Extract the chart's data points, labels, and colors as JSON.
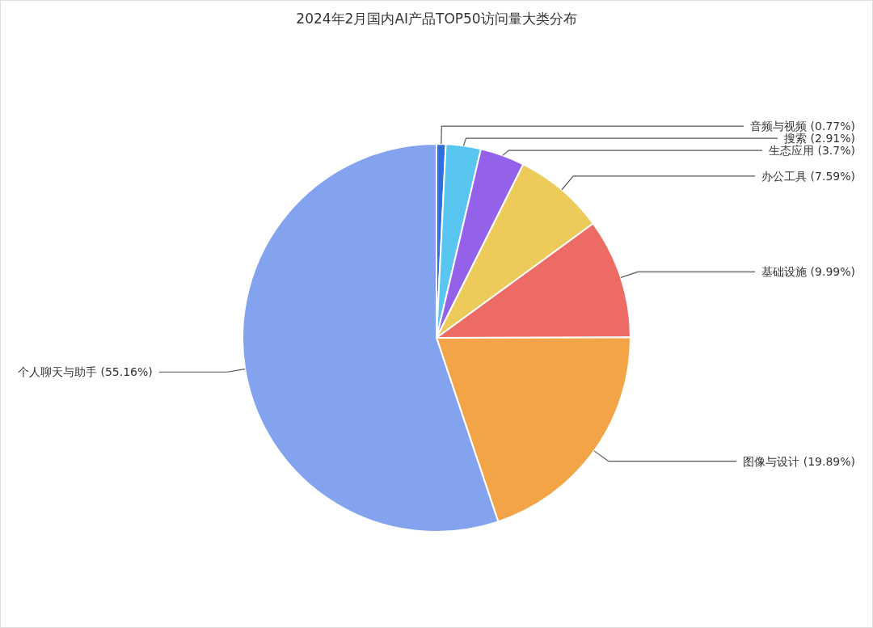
{
  "chart_data": {
    "type": "pie",
    "title": "2024年2月国内AI产品TOP50访问量大类分布",
    "categories": [
      "音频与视频",
      "搜索",
      "生态应用",
      "办公工具",
      "基础设施",
      "图像与设计",
      "个人聊天与助手"
    ],
    "values": [
      0.77,
      2.91,
      3.7,
      7.59,
      9.99,
      19.89,
      55.16
    ],
    "value_labels": [
      "(0.77%)",
      "(2.91%)",
      "(3.7%)",
      "(7.59%)",
      "(9.99%)",
      "(19.89%)",
      "(55.16%)"
    ],
    "colors": [
      "#2f6fdc",
      "#58c6f0",
      "#9461e9",
      "#edcb5a",
      "#ec6c65",
      "#f2a446",
      "#84a3ef"
    ]
  }
}
